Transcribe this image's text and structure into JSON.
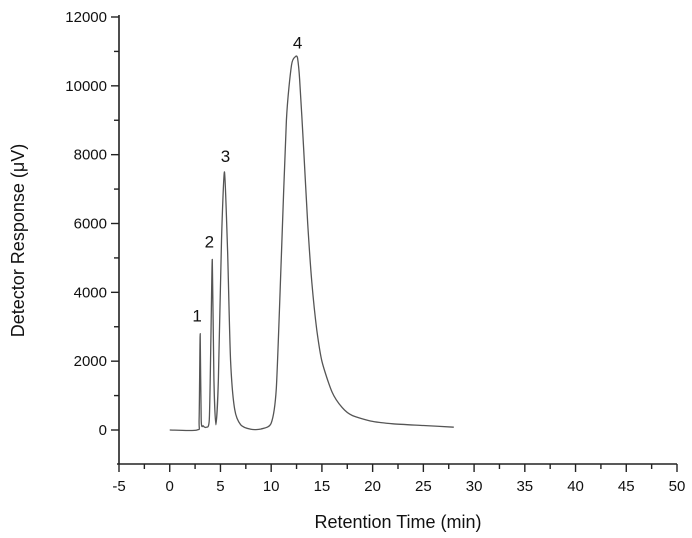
{
  "chart_data": {
    "type": "line",
    "title": "",
    "xlabel": "Retention Time (min)",
    "ylabel": "Detector Response (μV)",
    "xlim": [
      -5,
      50
    ],
    "ylim": [
      -1000,
      12000
    ],
    "x_ticks": [
      -5,
      0,
      5,
      10,
      15,
      20,
      25,
      30,
      35,
      40,
      45,
      50
    ],
    "y_ticks": [
      0,
      2000,
      4000,
      6000,
      8000,
      10000,
      12000
    ],
    "grid": false,
    "legend": null,
    "series": [
      {
        "name": "chromatogram",
        "color": "#555555",
        "x": [
          0,
          2.7,
          2.9,
          3.0,
          3.1,
          3.3,
          3.6,
          3.9,
          4.05,
          4.2,
          4.35,
          4.55,
          4.8,
          5.1,
          5.4,
          5.7,
          6.0,
          6.4,
          7.0,
          8.0,
          9.0,
          10.0,
          10.5,
          11.0,
          11.5,
          12.0,
          12.4,
          12.6,
          12.8,
          13.2,
          13.6,
          14.0,
          14.5,
          15.0,
          16.0,
          17.0,
          18.0,
          20.0,
          22.0,
          25.0,
          28.0
        ],
        "y": [
          0,
          0,
          300,
          2800,
          300,
          120,
          80,
          300,
          2500,
          4950,
          1500,
          150,
          1500,
          5500,
          7500,
          5200,
          2000,
          600,
          150,
          20,
          30,
          200,
          1200,
          5000,
          9000,
          10600,
          10850,
          10800,
          10200,
          8200,
          6000,
          4300,
          2900,
          2000,
          1100,
          650,
          420,
          250,
          180,
          130,
          80
        ]
      }
    ],
    "annotations": [
      {
        "text": "1",
        "x": 3.0,
        "y": 2800
      },
      {
        "text": "2",
        "x": 4.2,
        "y": 4950
      },
      {
        "text": "3",
        "x": 5.4,
        "y": 7500
      },
      {
        "text": "4",
        "x": 12.6,
        "y": 10850
      }
    ]
  },
  "labels": {
    "xlabel": "Retention Time (min)",
    "ylabel": "Detector Response (μV)",
    "peaks": [
      "1",
      "2",
      "3",
      "4"
    ]
  }
}
